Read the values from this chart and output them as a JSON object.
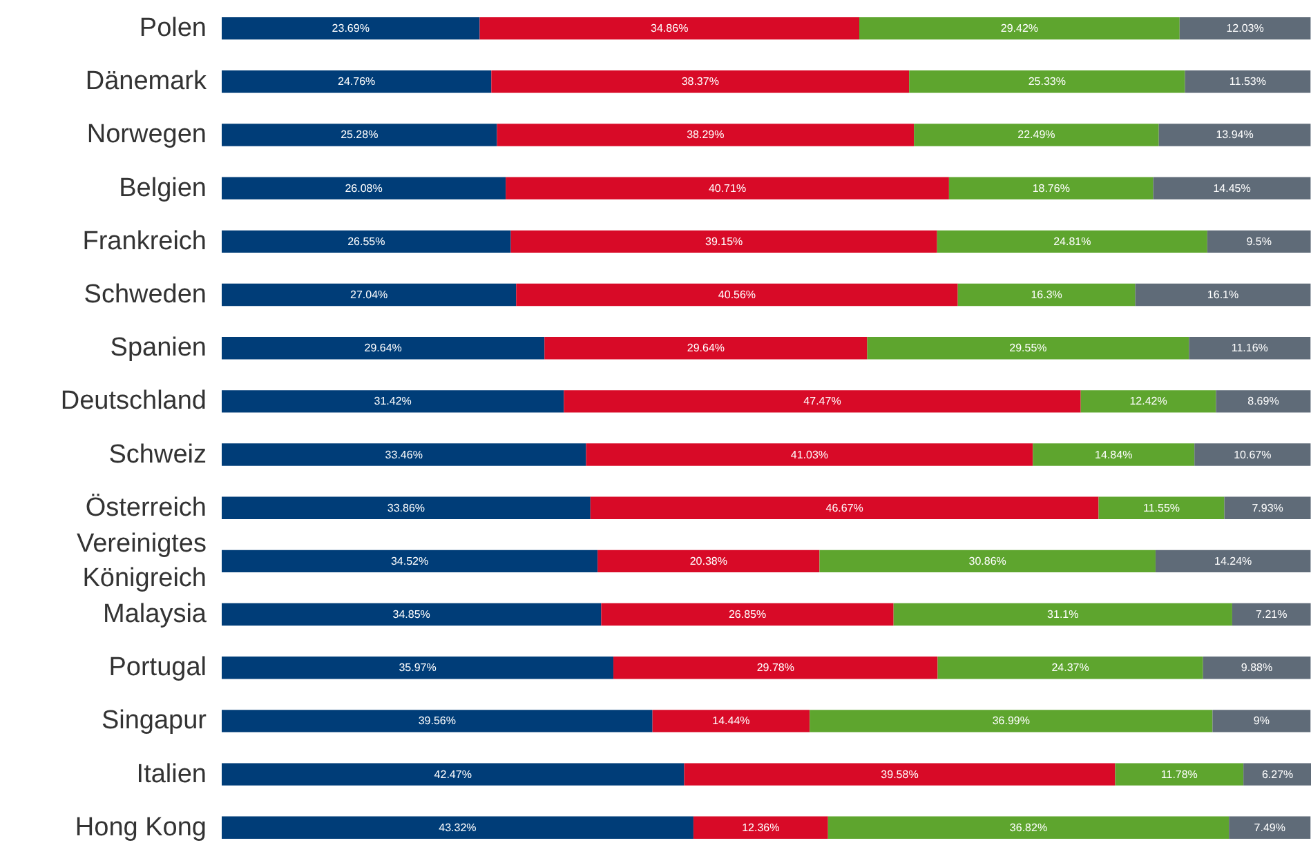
{
  "chart_data": {
    "type": "bar",
    "orientation": "horizontal",
    "stacked": true,
    "categories": [
      "Polen",
      "Dänemark",
      "Norwegen",
      "Belgien",
      "Frankreich",
      "Schweden",
      "Spanien",
      "Deutschland",
      "Schweiz",
      "Österreich",
      "Vereinigtes Königreich",
      "Malaysia",
      "Portugal",
      "Singapur",
      "Italien",
      "Hong Kong"
    ],
    "series": [
      {
        "color": "#003d78",
        "values": [
          23.69,
          24.76,
          25.28,
          26.08,
          26.55,
          27.04,
          29.64,
          31.42,
          33.46,
          33.86,
          34.52,
          34.85,
          35.97,
          39.56,
          42.47,
          43.32
        ],
        "value_labels": [
          "23.69%",
          "24.76%",
          "25.28%",
          "26.08%",
          "26.55%",
          "27.04%",
          "29.64%",
          "31.42%",
          "33.46%",
          "33.86%",
          "34.52%",
          "34.85%",
          "35.97%",
          "39.56%",
          "42.47%",
          "43.32%"
        ]
      },
      {
        "color": "#d80a27",
        "values": [
          34.86,
          38.37,
          38.29,
          40.71,
          39.15,
          40.56,
          29.64,
          47.47,
          41.03,
          46.67,
          20.38,
          26.85,
          29.78,
          14.44,
          39.58,
          12.36
        ],
        "value_labels": [
          "34.86%",
          "38.37%",
          "38.29%",
          "40.71%",
          "39.15%",
          "40.56%",
          "29.64%",
          "47.47%",
          "41.03%",
          "46.67%",
          "20.38%",
          "26.85%",
          "29.78%",
          "14.44%",
          "39.58%",
          "12.36%"
        ]
      },
      {
        "color": "#5ea52e",
        "values": [
          29.42,
          25.33,
          22.49,
          18.76,
          24.81,
          16.3,
          29.55,
          12.42,
          14.84,
          11.55,
          30.86,
          31.1,
          24.37,
          36.99,
          11.78,
          36.82
        ],
        "value_labels": [
          "29.42%",
          "25.33%",
          "22.49%",
          "18.76%",
          "24.81%",
          "16.3%",
          "29.55%",
          "12.42%",
          "14.84%",
          "11.55%",
          "30.86%",
          "31.1%",
          "24.37%",
          "36.99%",
          "11.78%",
          "36.82%"
        ]
      },
      {
        "color": "#5f6b78",
        "values": [
          12.03,
          11.53,
          13.94,
          14.45,
          9.5,
          16.1,
          11.16,
          8.69,
          10.67,
          7.93,
          14.24,
          7.21,
          9.88,
          9,
          6.27,
          7.49
        ],
        "value_labels": [
          "12.03%",
          "11.53%",
          "13.94%",
          "14.45%",
          "9.5%",
          "16.1%",
          "11.16%",
          "8.69%",
          "10.67%",
          "7.93%",
          "14.24%",
          "7.21%",
          "9.88%",
          "9%",
          "6.27%",
          "7.49%"
        ]
      }
    ]
  }
}
